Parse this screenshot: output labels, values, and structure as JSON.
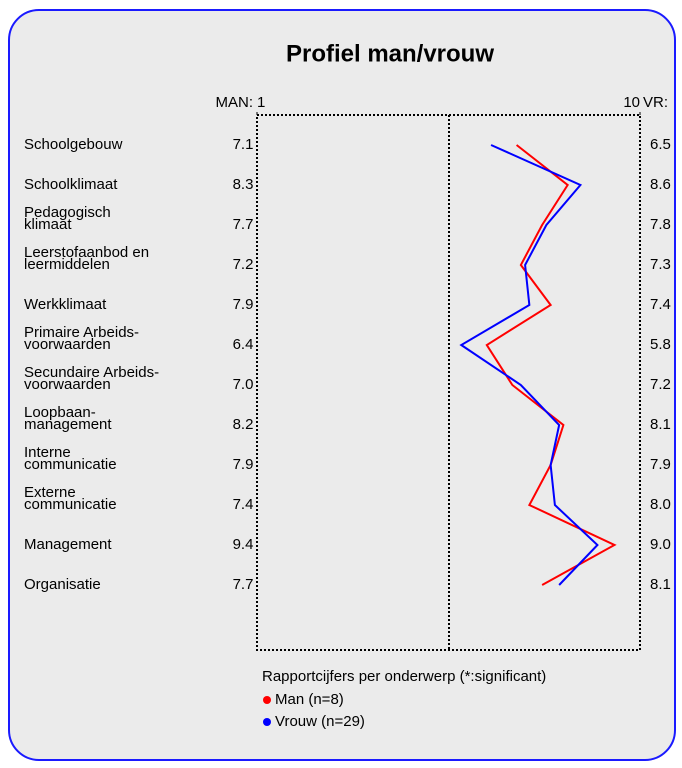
{
  "chart_data": {
    "type": "line",
    "title": "Profiel man/vrouw",
    "left_label": "MAN:",
    "right_label": "VR:",
    "categories": [
      [
        "Schoolgebouw"
      ],
      [
        "Schoolklimaat"
      ],
      [
        "Pedagogisch",
        "klimaat"
      ],
      [
        "Leerstofaanbod en",
        "leermiddelen"
      ],
      [
        "Werkklimaat"
      ],
      [
        "Primaire Arbeids-",
        "voorwaarden"
      ],
      [
        "Secundaire Arbeids-",
        "voorwaarden"
      ],
      [
        "Loopbaan-",
        "management"
      ],
      [
        "Interne",
        "communicatie"
      ],
      [
        "Externe",
        "communicatie"
      ],
      [
        "Management"
      ],
      [
        "Organisatie"
      ]
    ],
    "series": [
      {
        "name": "Man (n=8)",
        "color": "#ff0000",
        "values": [
          7.1,
          8.3,
          7.7,
          7.2,
          7.9,
          6.4,
          7.0,
          8.2,
          7.9,
          7.4,
          9.4,
          7.7
        ],
        "value_labels": [
          "7.1",
          "8.3",
          "7.7",
          "7.2",
          "7.9",
          "6.4",
          "7.0",
          "8.2",
          "7.9",
          "7.4",
          "9.4",
          "7.7"
        ]
      },
      {
        "name": "Vrouw (n=29)",
        "color": "#0000ff",
        "values": [
          6.5,
          8.6,
          7.8,
          7.3,
          7.4,
          5.8,
          7.2,
          8.1,
          7.9,
          8.0,
          9.0,
          8.1
        ],
        "value_labels": [
          "6.5",
          "8.6",
          "7.8",
          "7.3",
          "7.4",
          "5.8",
          "7.2",
          "8.1",
          "7.9",
          "8.0",
          "9.0",
          "8.1"
        ]
      }
    ],
    "xlim": [
      1,
      10
    ],
    "xticks": [
      1,
      10
    ],
    "legend_title": "Rapportcijfers per onderwerp (*:significant)"
  }
}
